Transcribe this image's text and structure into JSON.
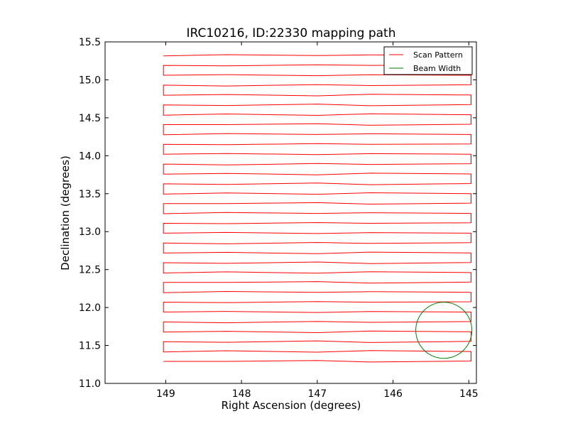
{
  "chart_data": {
    "type": "line",
    "title": "IRC10216, ID:22330 mapping path",
    "xlabel": "Right Ascension (degrees)",
    "ylabel": "Declination (degrees)",
    "xlim": [
      149.8,
      144.9
    ],
    "ylim": [
      11.0,
      15.5
    ],
    "x_ticks": [
      149,
      148,
      147,
      146,
      145
    ],
    "x_tick_labels": [
      "149",
      "148",
      "147",
      "146",
      "145"
    ],
    "y_ticks": [
      11.0,
      11.5,
      12.0,
      12.5,
      13.0,
      13.5,
      14.0,
      14.5,
      15.0,
      15.5
    ],
    "y_tick_labels": [
      "11.0",
      "11.5",
      "12.0",
      "12.5",
      "13.0",
      "13.5",
      "14.0",
      "14.5",
      "15.0",
      "15.5"
    ],
    "grid": false,
    "legend_position": "top-right",
    "colors": {
      "scan": "#ff0000",
      "beam": "#008000"
    },
    "series": [
      {
        "name": "Scan Pattern",
        "scan_rows": {
          "dec_start": 11.29,
          "dec_end": 15.32,
          "row_count": 32,
          "ra_west": 149.03,
          "ra_east": 144.97,
          "intermediate_ra": [
            148.2,
            147.0,
            146.3
          ]
        }
      },
      {
        "name": "Beam Width",
        "circle": {
          "center_ra": 145.33,
          "center_dec": 11.7,
          "radius_deg": 0.37
        }
      }
    ]
  }
}
